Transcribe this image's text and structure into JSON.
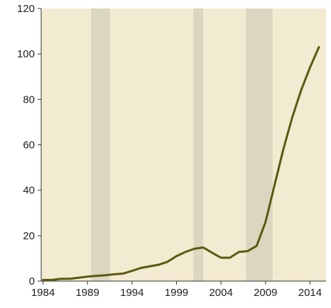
{
  "chart_data": {
    "type": "line",
    "title": "",
    "xlabel": "",
    "ylabel": "",
    "xlim": [
      1983.8,
      2015.8
    ],
    "ylim": [
      0,
      120
    ],
    "x_ticks": [
      1984,
      1989,
      1994,
      1999,
      2004,
      2009,
      2014
    ],
    "y_ticks": [
      0,
      20,
      40,
      60,
      80,
      100,
      120
    ],
    "grid": false,
    "legend": "none",
    "shaded_periods": [
      {
        "start": 1989.4,
        "end": 1991.5
      },
      {
        "start": 2000.9,
        "end": 2002.0
      },
      {
        "start": 2006.8,
        "end": 2009.8
      }
    ],
    "series": [
      {
        "x": [
          1984,
          1985,
          1986,
          1987,
          1988,
          1989,
          1990,
          1991,
          1992,
          1993,
          1994,
          1995,
          1996,
          1997,
          1998,
          1999,
          2000,
          2001,
          2002,
          2003,
          2004,
          2005,
          2006,
          2007,
          2008,
          2009,
          2010,
          2011,
          2012,
          2013,
          2014,
          2015
        ],
        "values": [
          0.5,
          0.5,
          1,
          1,
          1.5,
          2,
          2.3,
          2.6,
          3,
          3.3,
          4.5,
          5.8,
          6.5,
          7.2,
          8.5,
          11,
          12.8,
          14.2,
          14.8,
          12.5,
          10.3,
          10.3,
          12.8,
          13.2,
          15.5,
          26,
          42,
          58,
          72,
          84,
          94,
          103
        ]
      }
    ]
  },
  "colors": {
    "plot_background": "#f3ead2",
    "shade": "#dbd6c0",
    "line": "#5a5a10",
    "axis": "#333333"
  }
}
